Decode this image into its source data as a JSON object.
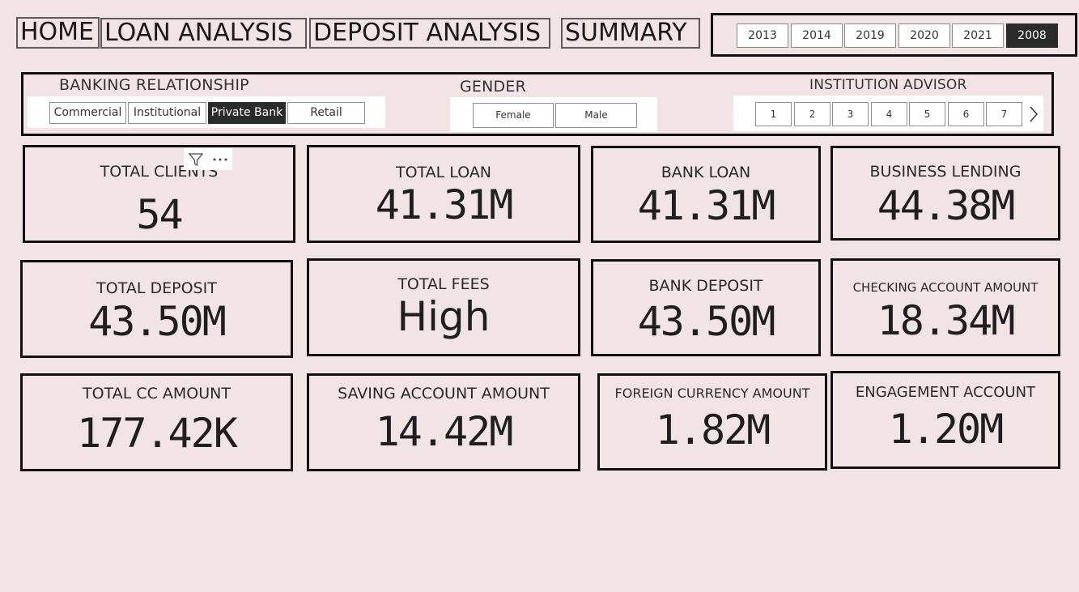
{
  "nav": {
    "home": "HOME",
    "loan_analysis": "LOAN ANALYSIS",
    "deposit_analysis": "DEPOSIT ANALYSIS",
    "summary": "SUMMARY"
  },
  "years": {
    "items": [
      "2013",
      "2014",
      "2019",
      "2020",
      "2021",
      "2008"
    ],
    "selected": "2008"
  },
  "filters": {
    "banking_relationship": {
      "title": "BANKING RELATIONSHIP",
      "options": [
        "Commercial",
        "Institutional",
        "Private Bank",
        "Retail"
      ],
      "selected": "Private Bank"
    },
    "gender": {
      "title": "GENDER",
      "options": [
        "Female",
        "Male"
      ]
    },
    "institution_advisor": {
      "title": "INSTITUTION ADVISOR",
      "options": [
        "1",
        "2",
        "3",
        "4",
        "5",
        "6",
        "7"
      ]
    }
  },
  "icons": {
    "filter": "filter-icon",
    "more": "more-options-icon",
    "next": "chevron-right-icon"
  },
  "cards": [
    {
      "label": "TOTAL CLIENTS",
      "value": "54"
    },
    {
      "label": "TOTAL LOAN",
      "value": "41.31M"
    },
    {
      "label": "BANK LOAN",
      "value": "41.31M"
    },
    {
      "label": "BUSINESS LENDING",
      "value": "44.38M"
    },
    {
      "label": "TOTAL DEPOSIT",
      "value": "43.50M"
    },
    {
      "label": "TOTAL FEES",
      "value": "High"
    },
    {
      "label": "BANK DEPOSIT",
      "value": "43.50M"
    },
    {
      "label": "CHECKING ACCOUNT AMOUNT",
      "value": "18.34M"
    },
    {
      "label": "TOTAL CC AMOUNT",
      "value": "177.42K"
    },
    {
      "label": "SAVING ACCOUNT AMOUNT",
      "value": "14.42M"
    },
    {
      "label": "FOREIGN CURRENCY AMOUNT",
      "value": "1.82M"
    },
    {
      "label": "ENGAGEMENT ACCOUNT",
      "value": "1.20M"
    }
  ]
}
